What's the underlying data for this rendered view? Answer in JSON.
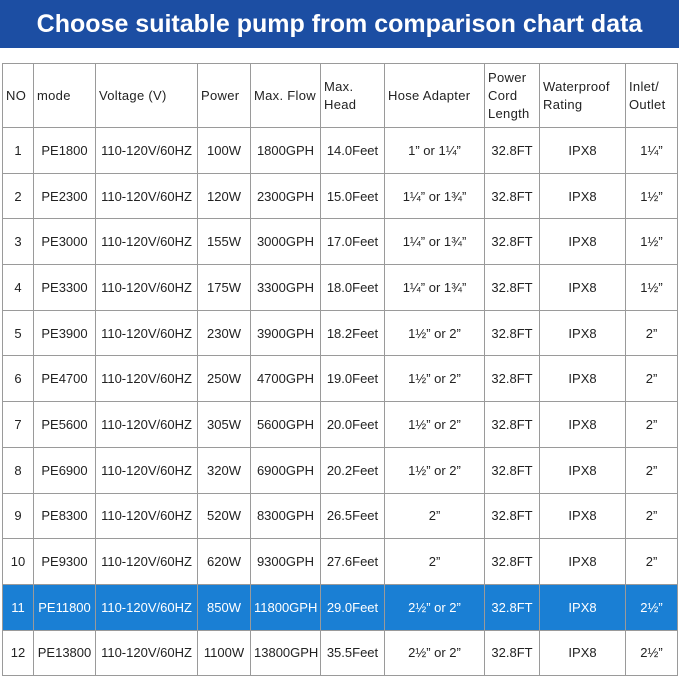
{
  "title": "Choose suitable pump from comparison chart data",
  "table": {
    "header": [
      "NO",
      "mode",
      "Voltage (V)",
      "Power",
      "Max. Flow",
      "Max. Head",
      "Hose Adapter",
      "Power Cord Length",
      "Waterproof Rating",
      "Inlet/ Outlet"
    ],
    "rows": [
      [
        "1",
        "PE1800",
        "110-120V/60HZ",
        "100W",
        "1800GPH",
        "14.0Feet",
        "1” or 1¼”",
        "32.8FT",
        "IPX8",
        "1¼”"
      ],
      [
        "2",
        "PE2300",
        "110-120V/60HZ",
        "120W",
        "2300GPH",
        "15.0Feet",
        "1¼” or 1¾”",
        "32.8FT",
        "IPX8",
        "1½”"
      ],
      [
        "3",
        "PE3000",
        "110-120V/60HZ",
        "155W",
        "3000GPH",
        "17.0Feet",
        "1¼” or 1¾”",
        "32.8FT",
        "IPX8",
        "1½”"
      ],
      [
        "4",
        "PE3300",
        "110-120V/60HZ",
        "175W",
        "3300GPH",
        "18.0Feet",
        "1¼” or 1¾”",
        "32.8FT",
        "IPX8",
        "1½”"
      ],
      [
        "5",
        "PE3900",
        "110-120V/60HZ",
        "230W",
        "3900GPH",
        "18.2Feet",
        "1½” or 2”",
        "32.8FT",
        "IPX8",
        "2”"
      ],
      [
        "6",
        "PE4700",
        "110-120V/60HZ",
        "250W",
        "4700GPH",
        "19.0Feet",
        "1½” or 2”",
        "32.8FT",
        "IPX8",
        "2”"
      ],
      [
        "7",
        "PE5600",
        "110-120V/60HZ",
        "305W",
        "5600GPH",
        "20.0Feet",
        "1½” or 2”",
        "32.8FT",
        "IPX8",
        "2”"
      ],
      [
        "8",
        "PE6900",
        "110-120V/60HZ",
        "320W",
        "6900GPH",
        "20.2Feet",
        "1½” or 2”",
        "32.8FT",
        "IPX8",
        "2”"
      ],
      [
        "9",
        "PE8300",
        "110-120V/60HZ",
        "520W",
        "8300GPH",
        "26.5Feet",
        "2”",
        "32.8FT",
        "IPX8",
        "2”"
      ],
      [
        "10",
        "PE9300",
        "110-120V/60HZ",
        "620W",
        "9300GPH",
        "27.6Feet",
        "2”",
        "32.8FT",
        "IPX8",
        "2”"
      ],
      [
        "11",
        "PE11800",
        "110-120V/60HZ",
        "850W",
        "11800GPH",
        "29.0Feet",
        "2½” or 2”",
        "32.8FT",
        "IPX8",
        "2½”"
      ],
      [
        "12",
        "PE13800",
        "110-120V/60HZ",
        "1100W",
        "13800GPH",
        "35.5Feet",
        "2½” or 2”",
        "32.8FT",
        "IPX8",
        "2½”"
      ]
    ]
  }
}
